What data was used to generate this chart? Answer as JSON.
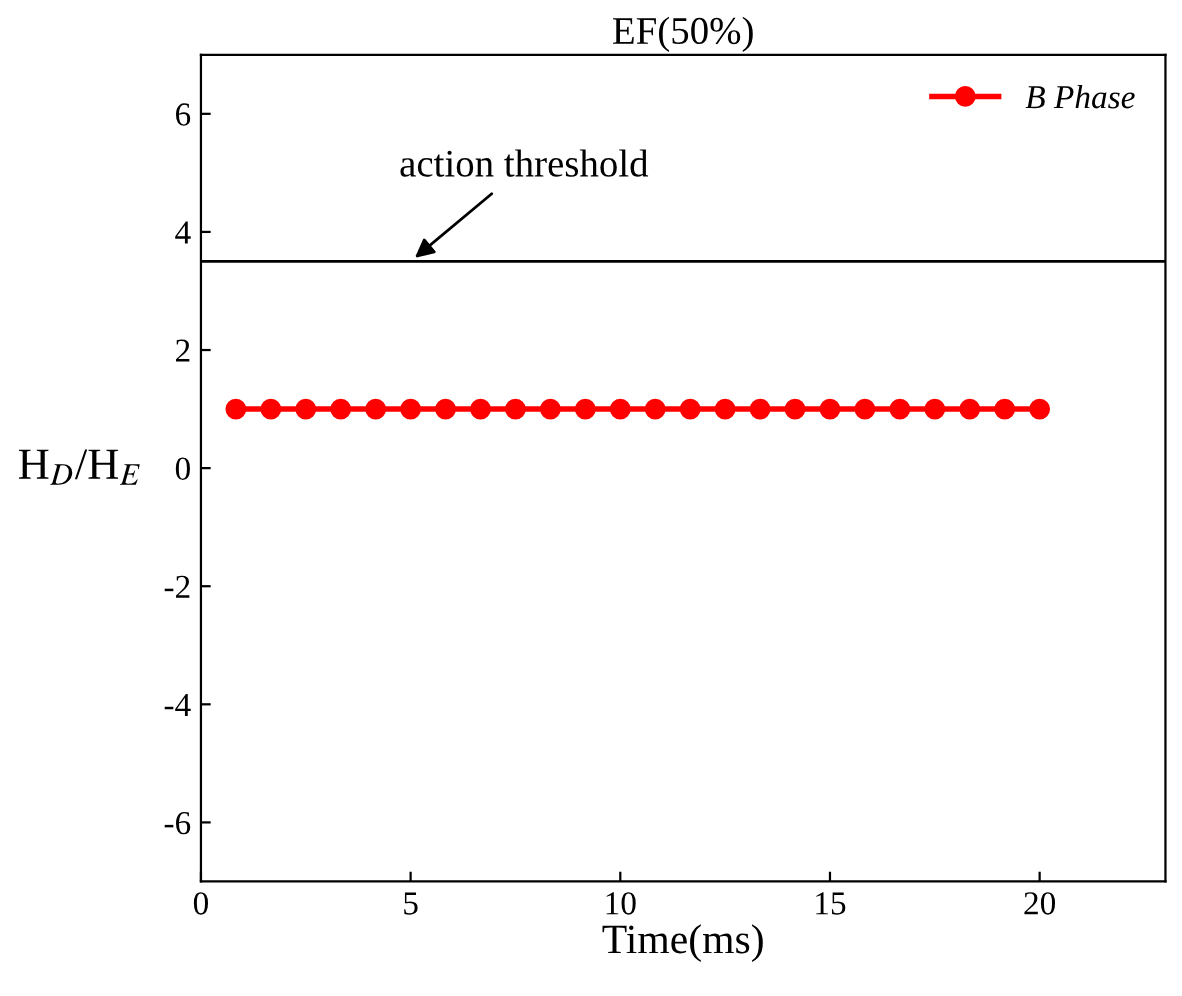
{
  "chart_data": {
    "type": "line",
    "title": "EF(50%)",
    "xlabel": "Time(ms)",
    "ylabel": "H$_{D}$/H$_{E}$",
    "x": [
      0.833,
      1.667,
      2.5,
      3.333,
      4.167,
      5.0,
      5.833,
      6.667,
      7.5,
      8.333,
      9.167,
      10.0,
      10.833,
      11.667,
      12.5,
      13.333,
      14.167,
      15.0,
      15.833,
      16.667,
      17.5,
      18.333,
      19.167,
      20.0
    ],
    "series": [
      {
        "name": "B Phase",
        "color": "#ff0000",
        "values": [
          1,
          1,
          1,
          1,
          1,
          1,
          1,
          1,
          1,
          1,
          1,
          1,
          1,
          1,
          1,
          1,
          1,
          1,
          1,
          1,
          1,
          1,
          1,
          1
        ]
      }
    ],
    "xlim": [
      0,
      23
    ],
    "xticks": [
      0,
      5,
      10,
      15,
      20
    ],
    "ylim": [
      -7,
      7
    ],
    "yticks": [
      -6,
      -4,
      -2,
      0,
      2,
      4,
      6
    ],
    "ref_lines": [
      {
        "axis": "y",
        "value": 3.5,
        "color": "#000000"
      }
    ],
    "annotations": [
      {
        "text": "action threshold",
        "x": 5,
        "y": 3.5
      }
    ],
    "legend": "top right",
    "marker": "circle",
    "line_style": "solid",
    "grid": false
  }
}
